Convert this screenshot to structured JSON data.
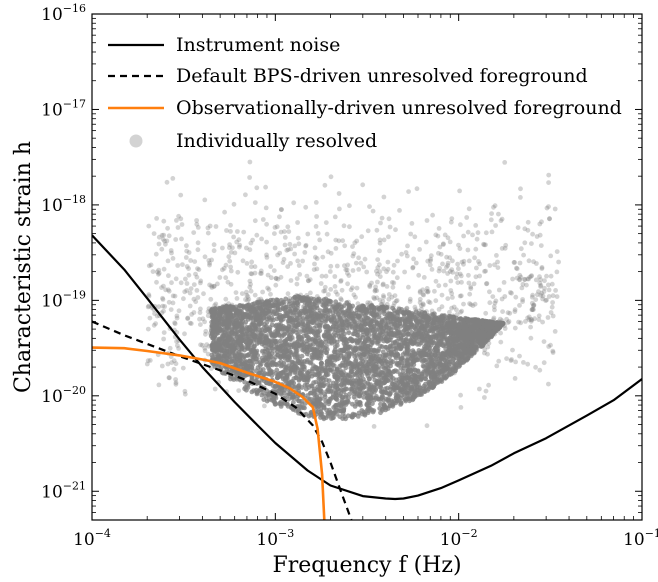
{
  "chart_data": {
    "type": "line",
    "xlabel": "Frequency f (Hz)",
    "ylabel": "Characteristic strain h",
    "xscale": "log",
    "yscale": "log",
    "xlim": [
      0.0001,
      0.1
    ],
    "ylim": [
      5e-22,
      1e-16
    ],
    "grid": false,
    "legend": {
      "placement": "top-left"
    },
    "x_ticks": [
      {
        "value": 0.0001,
        "base": "10",
        "exp": "−4"
      },
      {
        "value": 0.001,
        "base": "10",
        "exp": "−3"
      },
      {
        "value": 0.01,
        "base": "10",
        "exp": "−2"
      },
      {
        "value": 0.1,
        "base": "10",
        "exp": "−1"
      }
    ],
    "y_ticks": [
      {
        "value": 1e-21,
        "base": "10",
        "exp": "−21"
      },
      {
        "value": 1e-20,
        "base": "10",
        "exp": "−20"
      },
      {
        "value": 1e-19,
        "base": "10",
        "exp": "−19"
      },
      {
        "value": 1e-18,
        "base": "10",
        "exp": "−18"
      },
      {
        "value": 1e-17,
        "base": "10",
        "exp": "−17"
      },
      {
        "value": 1e-16,
        "base": "10",
        "exp": "−16"
      }
    ],
    "series": [
      {
        "name": "Instrument noise",
        "style": "solid",
        "color": "#000000",
        "x": [
          0.0001,
          0.00015,
          0.0002,
          0.0003,
          0.0004,
          0.0006,
          0.0008,
          0.001,
          0.0015,
          0.002,
          0.003,
          0.004,
          0.0045,
          0.005,
          0.006,
          0.008,
          0.01,
          0.015,
          0.02,
          0.03,
          0.05,
          0.07,
          0.1
        ],
        "y": [
          4.8e-19,
          2.1e-19,
          1.05e-19,
          3.9e-20,
          2e-20,
          8.6e-21,
          4.9e-21,
          3.2e-21,
          1.65e-21,
          1.15e-21,
          8.9e-22,
          8.4e-22,
          8.3e-22,
          8.4e-22,
          9e-22,
          1.08e-21,
          1.3e-21,
          1.85e-21,
          2.5e-21,
          3.6e-21,
          6.2e-21,
          9e-21,
          1.5e-20
        ]
      },
      {
        "name": "Default BPS-driven unresolved foreground",
        "style": "dashed",
        "color": "#000000",
        "x": [
          0.0001,
          0.00015,
          0.0002,
          0.0003,
          0.0005,
          0.0007,
          0.001,
          0.0013,
          0.0016,
          0.0018,
          0.002,
          0.0022,
          0.0024,
          0.0026
        ],
        "y": [
          6e-20,
          4.3e-20,
          3.5e-20,
          2.6e-20,
          1.85e-20,
          1.45e-20,
          1.05e-20,
          7.5e-21,
          4.9e-21,
          3.3e-21,
          2e-21,
          1.2e-21,
          7.6e-22,
          5e-22
        ]
      },
      {
        "name": "Observationally-driven unresolved foreground",
        "style": "solid",
        "color": "#ff7f0e",
        "x": [
          0.0001,
          0.00015,
          0.0002,
          0.0003,
          0.0004,
          0.0005,
          0.0007,
          0.001,
          0.0012,
          0.0014,
          0.0016,
          0.0017,
          0.0018,
          0.00185
        ],
        "y": [
          3.2e-20,
          3.15e-20,
          2.95e-20,
          2.65e-20,
          2.4e-20,
          2.2e-20,
          1.75e-20,
          1.4e-20,
          1.2e-20,
          9.8e-21,
          7.6e-21,
          4.5e-21,
          1.5e-21,
          5e-22
        ]
      },
      {
        "name": "Individually resolved",
        "style": "scatter",
        "color": "#808080",
        "region": {
          "x": [
            0.0002,
            0.035
          ],
          "y": [
            5e-21,
            4e-18
          ],
          "dense_core": "triangle narrowing from 1e-19 down to a tip near f=0.0022, h=5e-21"
        }
      }
    ]
  }
}
